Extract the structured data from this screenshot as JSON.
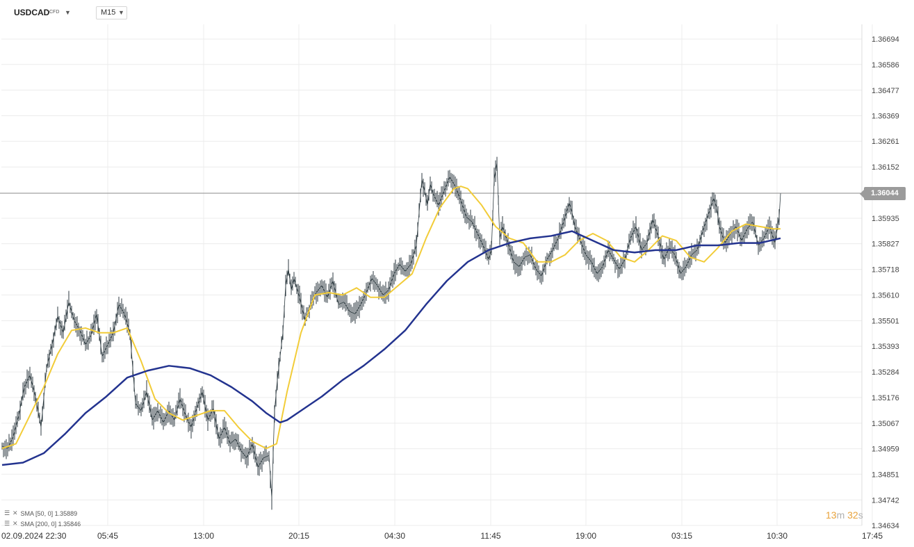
{
  "toolbar": {
    "symbol": "USDCAD",
    "symbol_tag": "CFD",
    "timeframe": "M15"
  },
  "legend": [
    {
      "label": "SMA [50, 0] 1.35889",
      "color": "#f2cc38"
    },
    {
      "label": "SMA [200, 0] 1.35846",
      "color": "#23338f"
    }
  ],
  "timer": {
    "minutes": "13",
    "m": "m",
    "seconds": "32",
    "s": "s"
  },
  "price_tag": "1.36044",
  "chart_data": {
    "type": "line",
    "instrument": "USDCAD",
    "timeframe": "M15",
    "ylim": [
      1.34634,
      1.36756
    ],
    "y_ticks": [
      "1.36694",
      "1.36586",
      "1.36477",
      "1.36369",
      "1.36261",
      "1.36152",
      "1.35935",
      "1.35827",
      "1.35718",
      "1.35610",
      "1.35501",
      "1.35393",
      "1.35284",
      "1.35176",
      "1.35067",
      "1.34959",
      "1.34851",
      "1.34742",
      "1.34634"
    ],
    "x_tick_labels": [
      "02.09.2024  22:30",
      "05:45",
      "13:00",
      "20:15",
      "04:30",
      "11:45",
      "19:00",
      "03:15",
      "10:30",
      "17:45"
    ],
    "grid": true,
    "current_price": 1.36044,
    "price_series": {
      "name": "USDCAD",
      "color": "#2d3a40",
      "x": [
        0,
        8,
        16,
        24,
        32,
        40,
        48,
        56,
        64,
        72,
        80,
        88,
        96,
        104,
        112,
        120,
        128,
        136,
        144,
        152,
        160,
        168,
        176,
        184,
        192,
        200,
        208,
        216,
        224,
        232,
        240,
        248,
        256,
        264,
        272,
        280,
        288,
        296,
        304,
        312,
        320,
        328,
        336,
        344,
        352,
        360,
        368,
        376,
        384,
        388,
        392,
        396,
        400,
        404,
        408,
        412,
        416,
        420,
        428,
        436,
        444,
        452,
        460,
        468,
        476,
        484,
        492,
        500,
        508,
        516,
        524,
        532,
        540,
        548,
        556,
        564,
        572,
        580,
        588,
        596,
        600,
        604,
        608,
        612,
        616,
        620,
        628,
        636,
        644,
        652,
        660,
        668,
        676,
        684,
        692,
        700,
        704,
        708,
        712,
        716,
        720,
        728,
        736,
        744,
        752,
        760,
        768,
        776,
        784,
        792,
        800,
        808,
        816,
        820,
        824,
        832,
        840,
        848,
        856,
        864,
        872,
        880,
        888,
        896,
        904,
        912,
        920,
        928,
        936,
        944,
        952,
        960,
        968,
        976,
        984,
        992,
        1000,
        1008,
        1016,
        1024,
        1028,
        1032,
        1040,
        1048,
        1056,
        1064,
        1072,
        1080,
        1088,
        1096,
        1104,
        1112,
        1118,
        1120
      ],
      "y": [
        1.3497,
        1.3496,
        1.3501,
        1.351,
        1.3522,
        1.3527,
        1.3518,
        1.3505,
        1.353,
        1.354,
        1.3552,
        1.3545,
        1.3558,
        1.355,
        1.3546,
        1.354,
        1.3544,
        1.3553,
        1.3535,
        1.354,
        1.3545,
        1.3557,
        1.3553,
        1.3545,
        1.3515,
        1.3512,
        1.352,
        1.3508,
        1.3512,
        1.3507,
        1.3512,
        1.3508,
        1.3517,
        1.351,
        1.3505,
        1.3513,
        1.352,
        1.3508,
        1.3513,
        1.35,
        1.3505,
        1.3498,
        1.35,
        1.3495,
        1.3492,
        1.3498,
        1.3488,
        1.3492,
        1.3493,
        1.3475,
        1.3512,
        1.3525,
        1.3535,
        1.3545,
        1.3565,
        1.3572,
        1.3563,
        1.3568,
        1.356,
        1.355,
        1.3557,
        1.3562,
        1.3565,
        1.356,
        1.3567,
        1.3557,
        1.3558,
        1.3554,
        1.3553,
        1.3557,
        1.3562,
        1.3568,
        1.3565,
        1.3561,
        1.3563,
        1.357,
        1.3574,
        1.3571,
        1.3574,
        1.3582,
        1.3596,
        1.361,
        1.3605,
        1.3599,
        1.3608,
        1.3604,
        1.3599,
        1.3605,
        1.3611,
        1.3607,
        1.3601,
        1.3594,
        1.3592,
        1.3587,
        1.3582,
        1.3576,
        1.358,
        1.361,
        1.3617,
        1.3585,
        1.359,
        1.3583,
        1.3575,
        1.3573,
        1.3577,
        1.3578,
        1.3572,
        1.3569,
        1.3576,
        1.358,
        1.3585,
        1.3592,
        1.36,
        1.3596,
        1.359,
        1.3584,
        1.3578,
        1.3575,
        1.357,
        1.3573,
        1.358,
        1.3576,
        1.3572,
        1.3576,
        1.3585,
        1.359,
        1.358,
        1.3583,
        1.3593,
        1.3586,
        1.3576,
        1.3581,
        1.3578,
        1.357,
        1.3573,
        1.3578,
        1.358,
        1.3588,
        1.3595,
        1.3602,
        1.3598,
        1.359,
        1.3583,
        1.3587,
        1.359,
        1.3584,
        1.3589,
        1.3592,
        1.3582,
        1.3585,
        1.359,
        1.3583,
        1.3594,
        1.3604
      ]
    },
    "series": [
      {
        "name": "SMA [50, 0]",
        "color": "#f2cc38",
        "x": [
          0,
          20,
          40,
          60,
          80,
          100,
          120,
          140,
          160,
          180,
          200,
          220,
          240,
          260,
          280,
          300,
          320,
          340,
          360,
          380,
          395,
          410,
          430,
          450,
          470,
          490,
          510,
          530,
          550,
          570,
          590,
          610,
          630,
          650,
          660,
          670,
          690,
          710,
          730,
          750,
          770,
          790,
          810,
          830,
          850,
          870,
          890,
          910,
          930,
          950,
          970,
          990,
          1010,
          1030,
          1050,
          1070,
          1090,
          1110,
          1120
        ],
        "y": [
          1.3496,
          1.3498,
          1.351,
          1.3522,
          1.3536,
          1.3546,
          1.3547,
          1.3545,
          1.3545,
          1.3547,
          1.3533,
          1.3517,
          1.3511,
          1.3508,
          1.351,
          1.3512,
          1.3512,
          1.3505,
          1.3499,
          1.3496,
          1.3498,
          1.352,
          1.3545,
          1.3561,
          1.3562,
          1.3561,
          1.3564,
          1.356,
          1.356,
          1.3565,
          1.357,
          1.3585,
          1.3598,
          1.3606,
          1.3607,
          1.3606,
          1.3599,
          1.359,
          1.3585,
          1.3583,
          1.3575,
          1.3575,
          1.3578,
          1.3584,
          1.3587,
          1.3584,
          1.3577,
          1.3575,
          1.358,
          1.3586,
          1.3584,
          1.3577,
          1.3575,
          1.3581,
          1.3588,
          1.3591,
          1.359,
          1.3589,
          1.3589
        ]
      },
      {
        "name": "SMA [200, 0]",
        "color": "#23338f",
        "x": [
          0,
          30,
          60,
          90,
          120,
          150,
          180,
          210,
          240,
          270,
          300,
          330,
          360,
          380,
          400,
          410,
          430,
          460,
          490,
          520,
          550,
          580,
          610,
          640,
          670,
          700,
          730,
          760,
          790,
          820,
          850,
          880,
          910,
          940,
          970,
          1000,
          1030,
          1060,
          1090,
          1120
        ],
        "y": [
          1.3489,
          1.349,
          1.3494,
          1.3502,
          1.3511,
          1.3518,
          1.3526,
          1.3529,
          1.3531,
          1.353,
          1.3527,
          1.3522,
          1.3516,
          1.3511,
          1.3507,
          1.3508,
          1.3512,
          1.3518,
          1.3525,
          1.3531,
          1.3538,
          1.3546,
          1.3557,
          1.3567,
          1.3575,
          1.358,
          1.3583,
          1.3585,
          1.3586,
          1.3588,
          1.3584,
          1.358,
          1.3579,
          1.358,
          1.358,
          1.3582,
          1.3582,
          1.3583,
          1.3583,
          1.3585
        ]
      }
    ]
  }
}
